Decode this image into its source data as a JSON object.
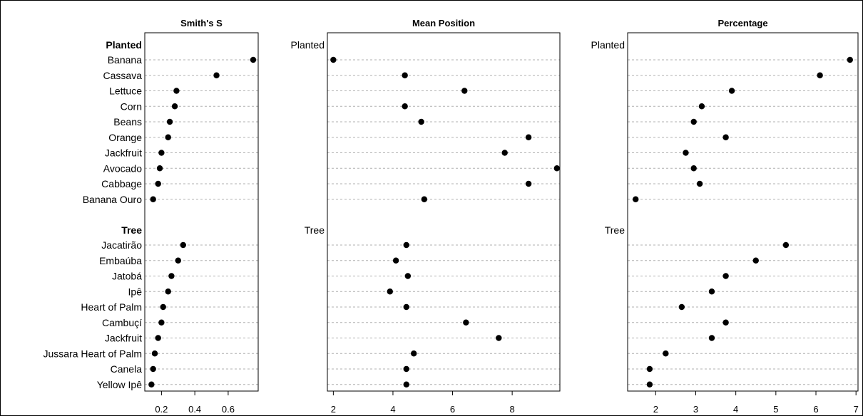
{
  "chart_data": [
    {
      "type": "scatter",
      "title": "Smith's S",
      "xlim": [
        0.1,
        0.78
      ],
      "xticks": [
        0.2,
        0.4,
        0.6
      ],
      "xticklabels": [
        "0.2",
        "0.4",
        "0.6"
      ],
      "groups": [
        {
          "label": "Planted",
          "categories": [
            "Banana",
            "Cassava",
            "Lettuce",
            "Corn",
            "Beans",
            "Orange",
            "Jackfruit",
            "Avocado",
            "Cabbage",
            "Banana Ouro"
          ],
          "values": [
            0.75,
            0.53,
            0.29,
            0.28,
            0.25,
            0.24,
            0.2,
            0.19,
            0.18,
            0.15
          ]
        },
        {
          "label": "Tree",
          "categories": [
            "Jacatirão",
            "Embaúba",
            "Jatobá",
            "Ipê",
            "Heart of Palm",
            "Cambuçí",
            "Jackfruit",
            "Jussara Heart of Palm",
            "Canela",
            "Yellow Ipê"
          ],
          "values": [
            0.33,
            0.3,
            0.26,
            0.24,
            0.21,
            0.2,
            0.18,
            0.16,
            0.15,
            0.14
          ]
        }
      ]
    },
    {
      "type": "scatter",
      "title": "Mean Position",
      "xlim": [
        1.8,
        9.6
      ],
      "xticks": [
        2,
        4,
        6,
        8
      ],
      "xticklabels": [
        "2",
        "4",
        "6",
        "8"
      ],
      "groups": [
        {
          "label": "Planted",
          "values": [
            2.0,
            4.4,
            6.4,
            4.4,
            4.95,
            8.55,
            7.75,
            9.5,
            8.55,
            5.05
          ]
        },
        {
          "label": "Tree",
          "values": [
            4.45,
            4.1,
            4.5,
            3.9,
            4.45,
            6.45,
            7.55,
            4.7,
            4.45,
            4.45
          ]
        }
      ]
    },
    {
      "type": "scatter",
      "title": "Percentage",
      "xlim": [
        1.3,
        7.05
      ],
      "xticks": [
        2,
        3,
        4,
        5,
        6,
        7
      ],
      "xticklabels": [
        "2",
        "3",
        "4",
        "5",
        "6",
        "7"
      ],
      "groups": [
        {
          "label": "Planted",
          "values": [
            6.85,
            6.1,
            3.9,
            3.15,
            2.95,
            3.75,
            2.75,
            2.95,
            3.1,
            1.5
          ]
        },
        {
          "label": "Tree",
          "values": [
            5.25,
            4.5,
            3.75,
            3.4,
            2.65,
            3.75,
            3.4,
            2.25,
            1.85,
            1.85
          ]
        }
      ]
    }
  ]
}
